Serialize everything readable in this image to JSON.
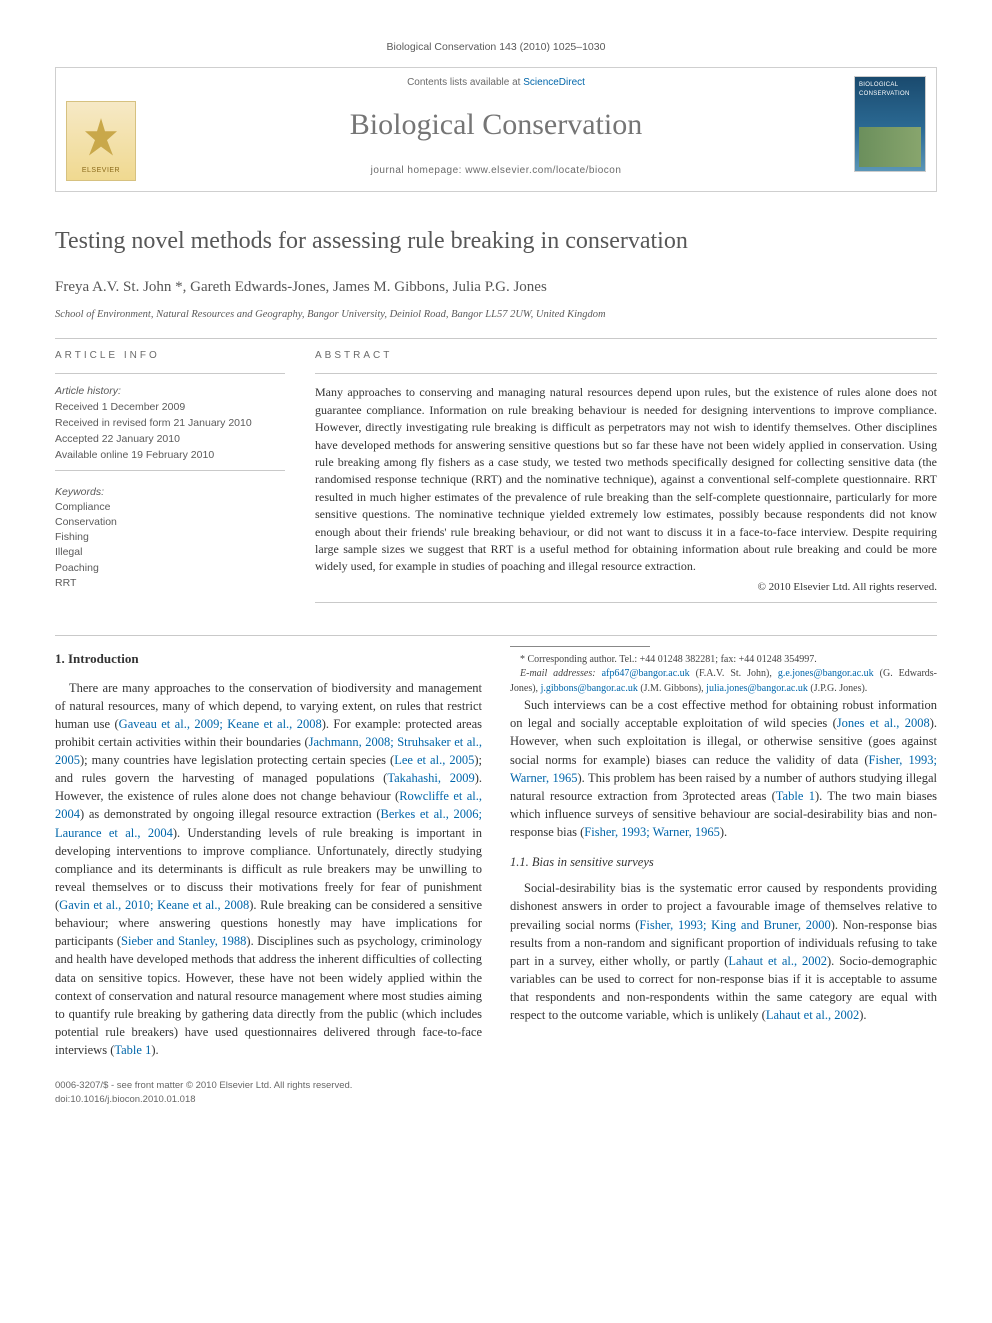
{
  "running_head": "Biological Conservation 143 (2010) 1025–1030",
  "masthead": {
    "availability_pre": "Contents lists available at ",
    "availability_link": "ScienceDirect",
    "journal_name": "Biological Conservation",
    "homepage_pre": "journal homepage: ",
    "homepage_url": "www.elsevier.com/locate/biocon",
    "publisher_logo": "ELSEVIER",
    "cover_label": "BIOLOGICAL CONSERVATION"
  },
  "title": "Testing novel methods for assessing rule breaking in conservation",
  "authors_html": "Freya A.V. St. John *, Gareth Edwards-Jones, James M. Gibbons, Julia P.G. Jones",
  "affiliation": "School of Environment, Natural Resources and Geography, Bangor University, Deiniol Road, Bangor LL57 2UW, United Kingdom",
  "article_info": {
    "header": "ARTICLE INFO",
    "history_label": "Article history:",
    "history": [
      "Received 1 December 2009",
      "Received in revised form 21 January 2010",
      "Accepted 22 January 2010",
      "Available online 19 February 2010"
    ],
    "keywords_label": "Keywords:",
    "keywords": [
      "Compliance",
      "Conservation",
      "Fishing",
      "Illegal",
      "Poaching",
      "RRT"
    ]
  },
  "abstract": {
    "header": "ABSTRACT",
    "text": "Many approaches to conserving and managing natural resources depend upon rules, but the existence of rules alone does not guarantee compliance. Information on rule breaking behaviour is needed for designing interventions to improve compliance. However, directly investigating rule breaking is difficult as perpetrators may not wish to identify themselves. Other disciplines have developed methods for answering sensitive questions but so far these have not been widely applied in conservation. Using rule breaking among fly fishers as a case study, we tested two methods specifically designed for collecting sensitive data (the randomised response technique (RRT) and the nominative technique), against a conventional self-complete questionnaire. RRT resulted in much higher estimates of the prevalence of rule breaking than the self-complete questionnaire, particularly for more sensitive questions. The nominative technique yielded extremely low estimates, possibly because respondents did not know enough about their friends' rule breaking behaviour, or did not want to discuss it in a face-to-face interview. Despite requiring large sample sizes we suggest that RRT is a useful method for obtaining information about rule breaking and could be more widely used, for example in studies of poaching and illegal resource extraction.",
    "copyright": "© 2010 Elsevier Ltd. All rights reserved."
  },
  "body": {
    "intro_heading": "1. Introduction",
    "p1a": "There are many approaches to the conservation of biodiversity and management of natural resources, many of which depend, to varying extent, on rules that restrict human use (",
    "c1": "Gaveau et al., 2009; Keane et al., 2008",
    "p1b": "). For example: protected areas prohibit certain activities within their boundaries (",
    "c2": "Jachmann, 2008; Struhsaker et al., 2005",
    "p1c": "); many countries have legislation protecting certain species (",
    "c3": "Lee et al., 2005",
    "p1d": "); and rules govern the harvesting of managed populations (",
    "c4": "Takahashi, 2009",
    "p1e": "). However, the existence of rules alone does not change behaviour (",
    "c5": "Rowcliffe et al., 2004",
    "p1f": ") as demonstrated by ongoing illegal resource extraction (",
    "c6": "Berkes et al., 2006; Laurance et al., 2004",
    "p1g": "). Understanding levels of rule breaking is important in developing interventions to improve compliance. Unfortunately, directly studying compliance and its determinants is difficult as rule breakers may be unwilling to reveal themselves or to discuss their motivations freely for fear of punishment (",
    "c7": "Gavin et al., 2010; Keane et al., 2008",
    "p1h": "). Rule breaking can be considered a sensitive behaviour; where answering questions honestly may have implications for participants (",
    "c8": "Sieber and Stanley, 1988",
    "p1i": "). Disciplines such as psychology, criminology and health have developed methods that address the inherent difficulties of collecting data on sensitive topics. However, these have not been widely ",
    "p2a": "applied within the context of conservation and natural resource management where most studies aiming to quantify rule breaking by gathering data directly from the public (which includes potential rule breakers) have used questionnaires delivered through face-to-face interviews (",
    "c9": "Table 1",
    "p2b": ").",
    "p3a": "Such interviews can be a cost effective method for obtaining robust information on legal and socially acceptable exploitation of wild species (",
    "c10": "Jones et al., 2008",
    "p3b": "). However, when such exploitation is illegal, or otherwise sensitive (goes against social norms for example) biases can reduce the validity of data (",
    "c11": "Fisher, 1993; Warner, 1965",
    "p3c": "). This problem has been raised by a number of authors studying illegal natural resource extraction from 3protected areas (",
    "c12": "Table 1",
    "p3d": "). The two main biases which influence surveys of sensitive behaviour are social-desirability bias and non-response bias (",
    "c13": "Fisher, 1993; Warner, 1965",
    "p3e": ").",
    "sub_heading": "1.1. Bias in sensitive surveys",
    "p4a": "Social-desirability bias is the systematic error caused by respondents providing dishonest answers in order to project a favourable image of themselves relative to prevailing social norms (",
    "c14": "Fisher, 1993; King and Bruner, 2000",
    "p4b": "). Non-response bias results from a non-random and significant proportion of individuals refusing to take part in a survey, either wholly, or partly (",
    "c15": "Lahaut et al., 2002",
    "p4c": "). Socio-demographic variables can be used to correct for non-response bias if it is acceptable to assume that respondents and non-respondents within the same category are equal with respect to the outcome variable, which is unlikely (",
    "c16": "Lahaut et al., 2002",
    "p4d": ")."
  },
  "footnotes": {
    "corr": "* Corresponding author. Tel.: +44 01248 382281; fax: +44 01248 354997.",
    "emails_label": "E-mail addresses: ",
    "e1": "afp647@bangor.ac.uk",
    "e1n": " (F.A.V. St. John), ",
    "e2": "g.e.jones@bangor.ac.uk",
    "e2n": " (G. Edwards-Jones), ",
    "e3": "j.gibbons@bangor.ac.uk",
    "e3n": " (J.M. Gibbons), ",
    "e4": "julia.jones@bangor.ac.uk",
    "e4n": " (J.P.G. Jones)."
  },
  "footer": {
    "line1": "0006-3207/$ - see front matter © 2010 Elsevier Ltd. All rights reserved.",
    "line2": "doi:10.1016/j.biocon.2010.01.018"
  },
  "colors": {
    "text": "#333333",
    "muted": "#6a6a6a",
    "link": "#0066aa",
    "rule": "#c9c9c9",
    "journal_title": "#757575",
    "logo_bg_top": "#f6e9c6",
    "logo_bg_bot": "#f0d990",
    "cover_top": "#1a4a6e",
    "cover_bot": "#5a95b7"
  },
  "typography": {
    "body_pt": 12.5,
    "title_pt": 24,
    "journal_pt": 30,
    "abstract_pt": 12,
    "info_pt": 10.5,
    "footnote_pt": 10,
    "footer_pt": 9.5
  }
}
